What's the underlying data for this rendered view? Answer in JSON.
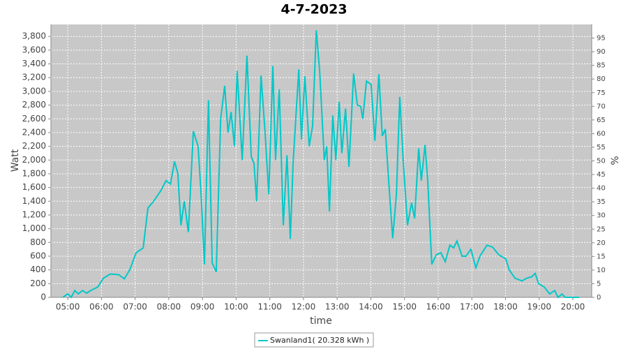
{
  "chart_data": {
    "type": "line",
    "title": "4-7-2023",
    "x_label": "time",
    "y_label": "Watt",
    "y2_label": "%",
    "xlim": [
      4.5,
      20.56
    ],
    "xticks": [
      {
        "value": 5,
        "label": "05:00"
      },
      {
        "value": 6,
        "label": "06:00"
      },
      {
        "value": 7,
        "label": "07:00"
      },
      {
        "value": 8,
        "label": "08:00"
      },
      {
        "value": 9,
        "label": "09:00"
      },
      {
        "value": 10,
        "label": "10:00"
      },
      {
        "value": 11,
        "label": "11:00"
      },
      {
        "value": 12,
        "label": "12:00"
      },
      {
        "value": 13,
        "label": "13:00"
      },
      {
        "value": 14,
        "label": "14:00"
      },
      {
        "value": 15,
        "label": "15:00"
      },
      {
        "value": 16,
        "label": "16:00"
      },
      {
        "value": 17,
        "label": "17:00"
      },
      {
        "value": 18,
        "label": "18:00"
      },
      {
        "value": 19,
        "label": "19:00"
      },
      {
        "value": 20,
        "label": "20:00"
      }
    ],
    "ylim": [
      0,
      3975
    ],
    "yticks": [
      0,
      200,
      400,
      600,
      800,
      {
        "value": 1000,
        "label": "1,000"
      },
      {
        "value": 1200,
        "label": "1,200"
      },
      {
        "value": 1400,
        "label": "1,400"
      },
      {
        "value": 1600,
        "label": "1,600"
      },
      {
        "value": 1800,
        "label": "1,800"
      },
      {
        "value": 2000,
        "label": "2,000"
      },
      {
        "value": 2200,
        "label": "2,200"
      },
      {
        "value": 2400,
        "label": "2,400"
      },
      {
        "value": 2600,
        "label": "2,600"
      },
      {
        "value": 2800,
        "label": "2,800"
      },
      {
        "value": 3000,
        "label": "3,000"
      },
      {
        "value": 3200,
        "label": "3,200"
      },
      {
        "value": 3400,
        "label": "3,400"
      },
      {
        "value": 3600,
        "label": "3,600"
      },
      {
        "value": 3800,
        "label": "3,800"
      }
    ],
    "y2lim": [
      0,
      100
    ],
    "y2ticks": [
      0,
      5,
      10,
      15,
      20,
      25,
      30,
      35,
      40,
      45,
      50,
      55,
      60,
      65,
      70,
      75,
      80,
      85,
      90,
      95
    ],
    "grid": true,
    "legend": "bottom",
    "x": [
      4.85,
      5.0,
      5.1,
      5.21,
      5.31,
      5.44,
      5.56,
      5.68,
      5.89,
      6.06,
      6.26,
      6.51,
      6.68,
      6.84,
      7.03,
      7.24,
      7.38,
      7.55,
      7.76,
      7.92,
      8.05,
      8.17,
      8.27,
      8.36,
      8.46,
      8.58,
      8.73,
      8.87,
      8.96,
      9.06,
      9.18,
      9.29,
      9.41,
      9.54,
      9.66,
      9.76,
      9.85,
      9.95,
      10.03,
      10.18,
      10.32,
      10.45,
      10.53,
      10.61,
      10.74,
      10.86,
      10.97,
      11.09,
      11.17,
      11.28,
      11.4,
      11.51,
      11.61,
      11.69,
      11.86,
      11.94,
      12.04,
      12.17,
      12.27,
      12.38,
      12.48,
      12.62,
      12.69,
      12.77,
      12.87,
      12.96,
      13.06,
      13.14,
      13.25,
      13.35,
      13.49,
      13.6,
      13.7,
      13.76,
      13.87,
      14.01,
      14.12,
      14.24,
      14.34,
      14.43,
      14.53,
      14.65,
      14.76,
      14.86,
      14.96,
      15.09,
      15.21,
      15.3,
      15.42,
      15.5,
      15.61,
      15.69,
      15.81,
      15.94,
      16.08,
      16.21,
      16.35,
      16.46,
      16.56,
      16.71,
      16.83,
      16.97,
      17.12,
      17.24,
      17.45,
      17.62,
      17.8,
      18.01,
      18.11,
      18.28,
      18.49,
      18.63,
      18.78,
      18.88,
      18.98,
      19.15,
      19.31,
      19.46,
      19.56,
      19.68,
      19.77,
      20.19
    ],
    "series": [
      {
        "name": "Swanland1( 20.328 kWh )",
        "color": "#00c8c8",
        "values": [
          0,
          50,
          0,
          100,
          50,
          100,
          60,
          100,
          150,
          280,
          340,
          330,
          270,
          400,
          650,
          720,
          1300,
          1400,
          1550,
          1700,
          1650,
          1980,
          1800,
          1050,
          1400,
          950,
          2420,
          2200,
          1500,
          480,
          2870,
          500,
          370,
          2600,
          3080,
          2400,
          2700,
          2200,
          3300,
          2000,
          3520,
          2050,
          1950,
          1400,
          3230,
          2400,
          1500,
          3370,
          2000,
          3030,
          1050,
          2070,
          850,
          1950,
          3320,
          2300,
          3220,
          2200,
          2500,
          3890,
          3300,
          2000,
          2200,
          1250,
          2650,
          2000,
          2850,
          2100,
          2750,
          1900,
          3260,
          2800,
          2780,
          2600,
          3150,
          3100,
          2280,
          3250,
          2350,
          2450,
          1700,
          860,
          1500,
          2920,
          2000,
          1050,
          1380,
          1150,
          2170,
          1700,
          2220,
          1700,
          480,
          620,
          650,
          520,
          760,
          720,
          820,
          600,
          600,
          700,
          430,
          600,
          760,
          730,
          620,
          560,
          400,
          280,
          240,
          280,
          300,
          350,
          200,
          150,
          50,
          100,
          0,
          50,
          0,
          0
        ]
      }
    ]
  }
}
